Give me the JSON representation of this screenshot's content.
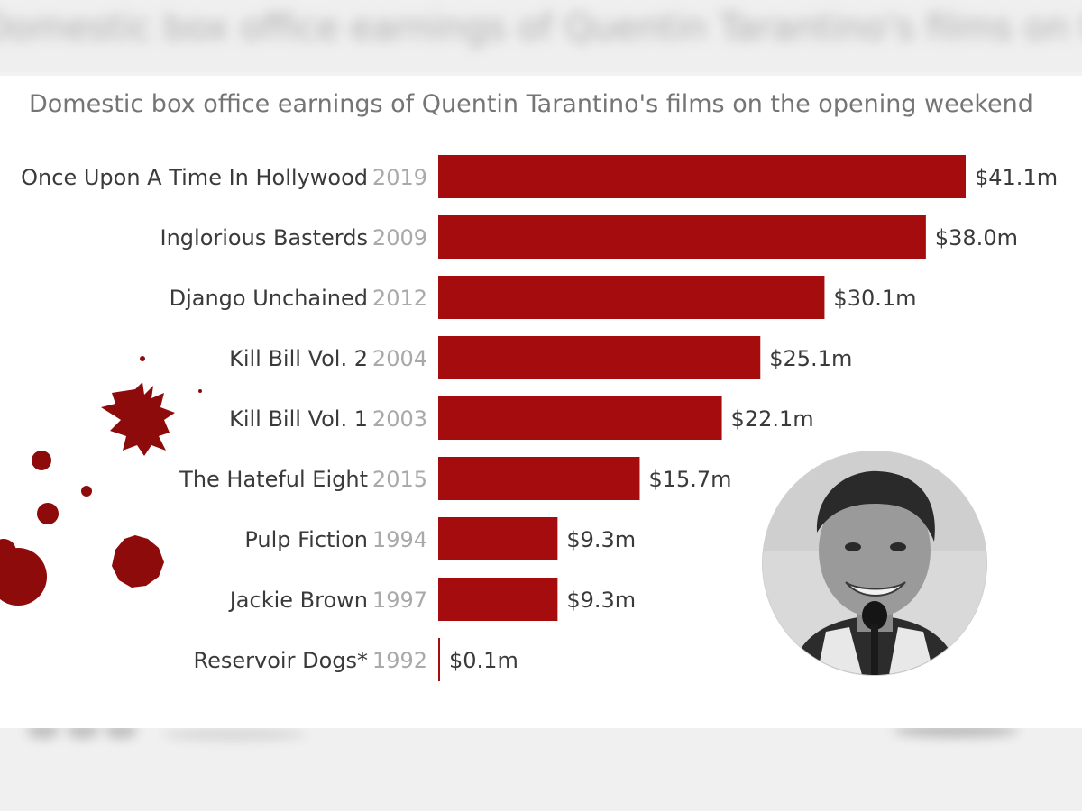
{
  "header": {
    "blurred_title": "Domestic box office earnings of Quentin Tarantino's films on the opening weekend"
  },
  "chart_data": {
    "type": "bar",
    "orientation": "horizontal",
    "title": "Domestic box office earnings of Quentin Tarantino's films on the opening weekend",
    "categories": [
      "Once Upon A Time In Hollywood",
      "Inglorious Basterds",
      "Django Unchained",
      "Kill Bill Vol. 2",
      "Kill Bill Vol. 1",
      "The Hateful Eight",
      "Pulp Fiction",
      "Jackie Brown",
      "Reservoir Dogs*"
    ],
    "years": [
      "2019",
      "2009",
      "2012",
      "2004",
      "2003",
      "2015",
      "1994",
      "1997",
      "1992"
    ],
    "values": [
      41.1,
      38.0,
      30.1,
      25.1,
      22.1,
      15.7,
      9.3,
      9.3,
      0.1
    ],
    "value_labels": [
      "$41.1m",
      "$38.0m",
      "$30.1m",
      "$25.1m",
      "$22.1m",
      "$15.7m",
      "$9.3m",
      "$9.3m",
      "$0.1m"
    ],
    "unit": "million USD",
    "xlim": [
      0,
      41.1
    ],
    "grid": false,
    "legend": "none",
    "colors": {
      "bar": "#a50c0e",
      "label": "#3a3a3a",
      "year": "#a9a9a9",
      "splatter": "#8e0b0b"
    }
  }
}
